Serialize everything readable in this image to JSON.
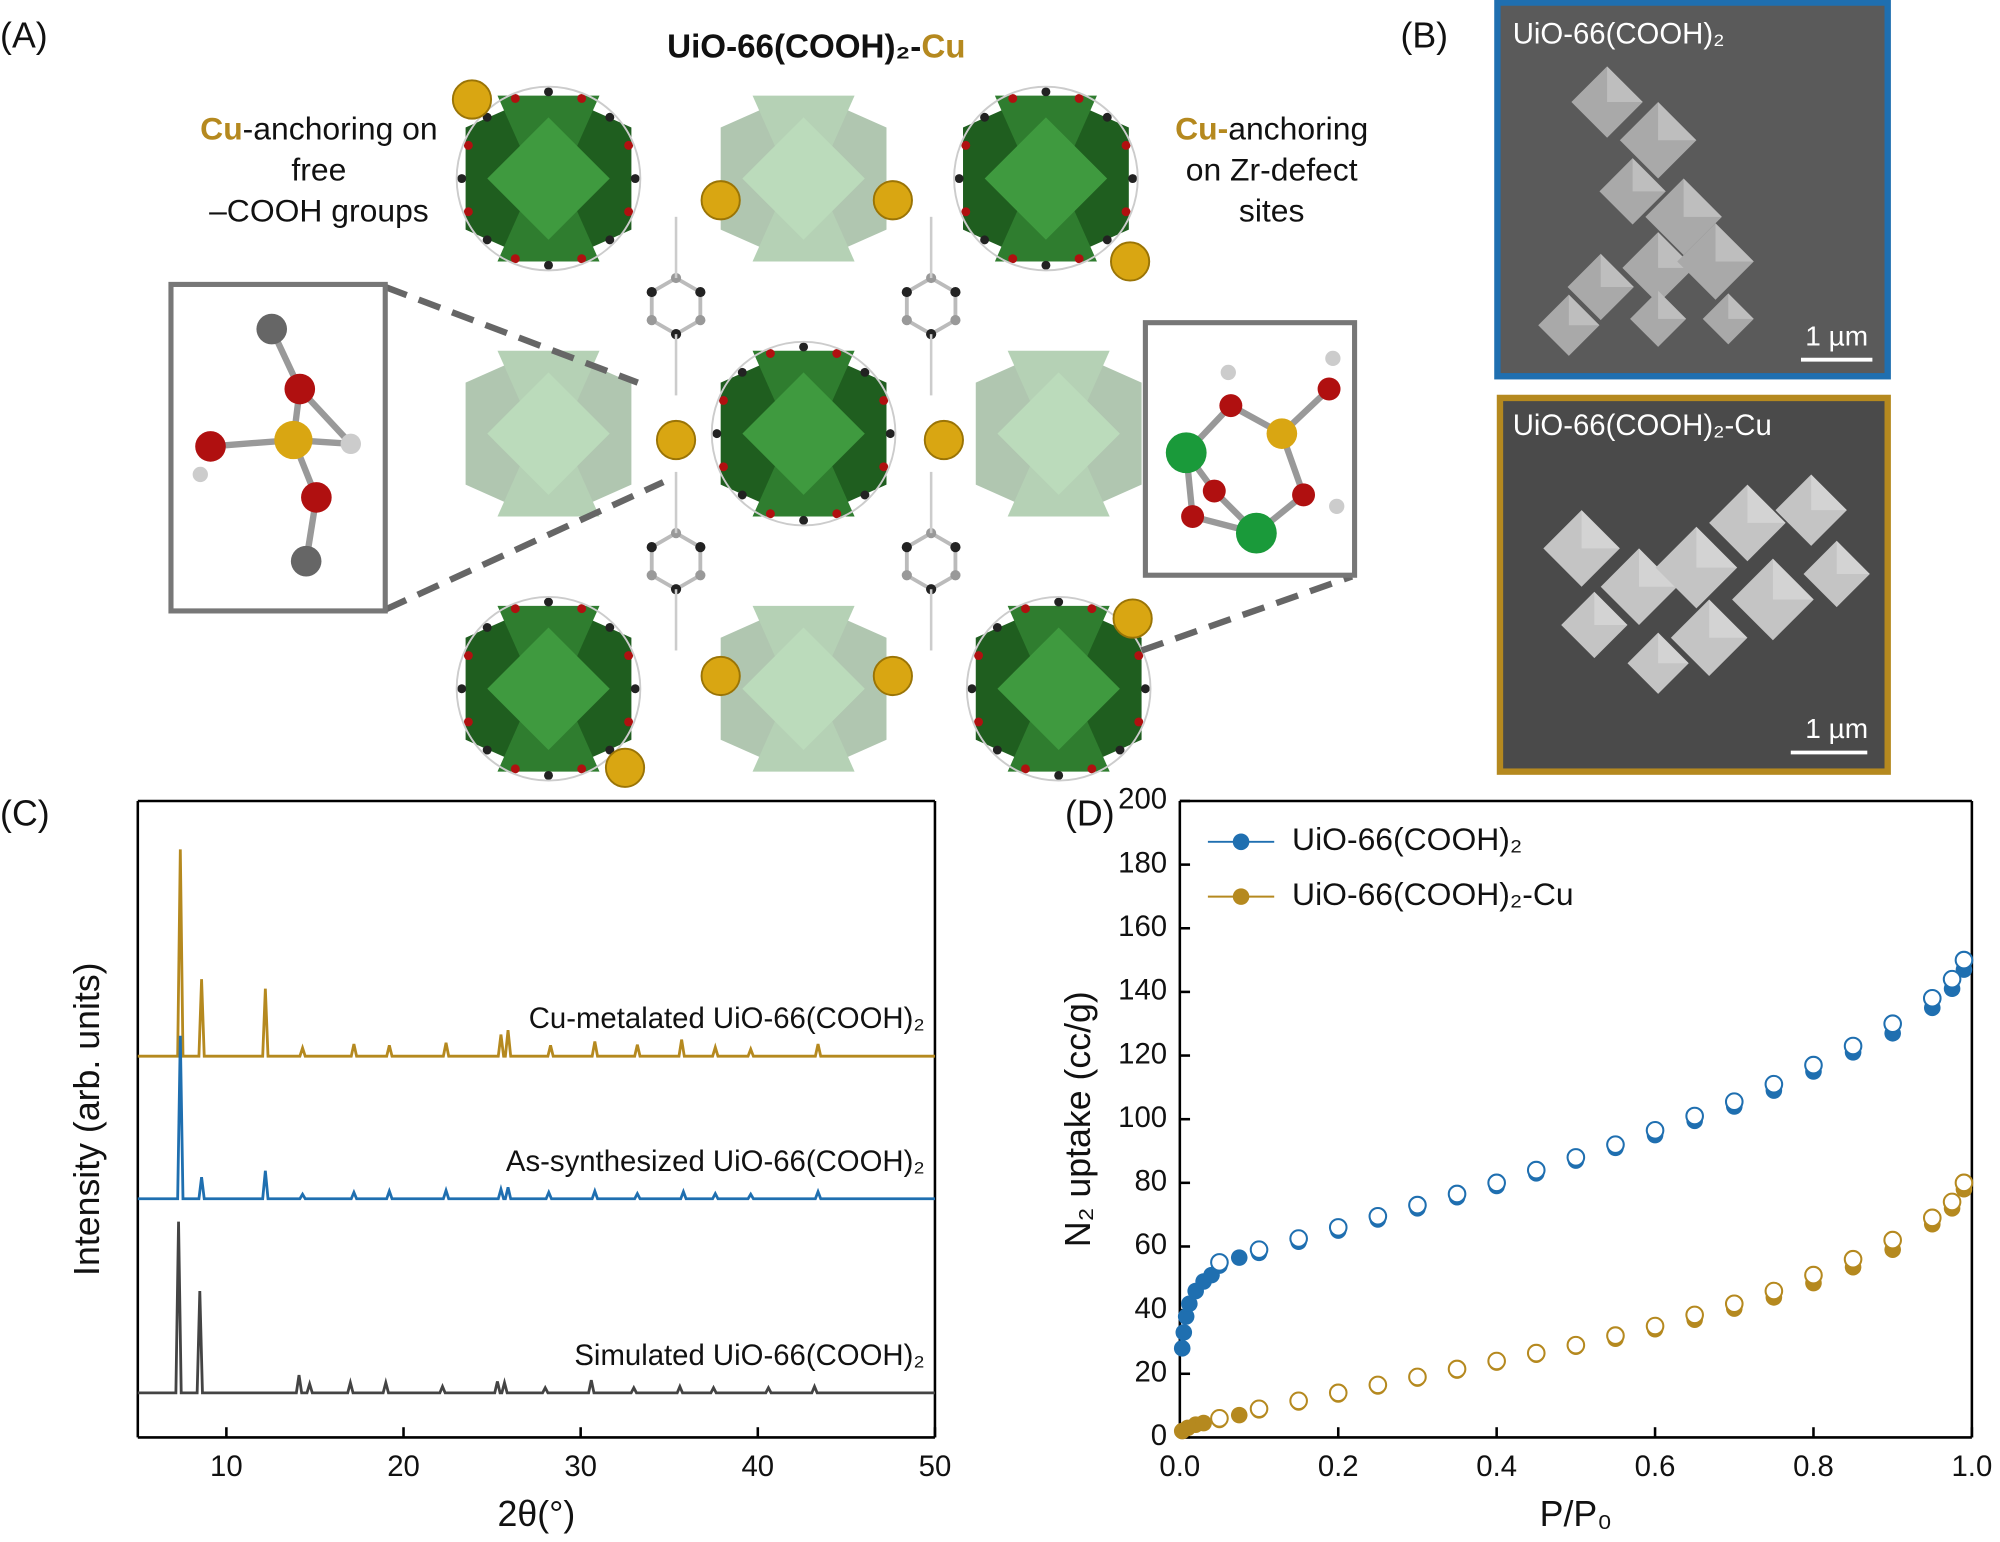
{
  "panel_labels": [
    "(A)",
    "(B)",
    "(C)",
    "(D)"
  ],
  "structure": {
    "title": "UiO-66(COOH)₂-",
    "title_highlight": "Cu",
    "left_note": {
      "highlight": "Cu",
      "lines": [
        "-anchoring on",
        "free",
        "–COOH groups"
      ]
    },
    "right_note": {
      "highlight": "Cu-",
      "lines": [
        "anchoring",
        "on Zr-defect",
        "sites"
      ]
    }
  },
  "micrographs": [
    {
      "label": "UiO-66(COOH)₂",
      "scale_bar": "1 µm"
    },
    {
      "label": "UiO-66(COOH)₂-Cu",
      "scale_bar": "1 µm"
    }
  ],
  "chart_data": [
    {
      "type": "line",
      "x_label": "2θ(°)",
      "y_label": "Intensity (arb. units)",
      "xlim": [
        5,
        50
      ],
      "xticks": [
        10,
        20,
        30,
        40,
        50
      ],
      "ylim": [
        0,
        100
      ],
      "series": [
        {
          "name": "Cu-metalated UiO-66(COOH)₂",
          "color": "#b5891f",
          "x": [
            5,
            7.25,
            7.4,
            7.55,
            8.45,
            8.6,
            8.75,
            12.05,
            12.2,
            12.35,
            14.15,
            14.3,
            14.45,
            17.05,
            17.2,
            17.35,
            19.05,
            19.2,
            19.35,
            22.25,
            22.4,
            22.55,
            25.35,
            25.5,
            25.65,
            25.75,
            25.9,
            26.05,
            28.15,
            28.3,
            28.45,
            30.65,
            30.8,
            30.95,
            33.05,
            33.2,
            33.35,
            35.55,
            35.7,
            35.85,
            37.45,
            37.6,
            37.75,
            39.45,
            39.6,
            39.75,
            43.25,
            43.4,
            43.55,
            50
          ],
          "values": [
            59.9,
            59.9,
            92.4,
            59.9,
            59.9,
            72,
            59.9,
            59.9,
            70.5,
            59.9,
            59.9,
            61.2,
            59.9,
            59.9,
            61.8,
            59.9,
            59.9,
            61.6,
            59.9,
            59.9,
            62,
            59.9,
            59.9,
            63.3,
            59.9,
            59.9,
            64,
            59.9,
            59.9,
            61.6,
            59.9,
            59.9,
            62.2,
            59.9,
            59.9,
            61.7,
            59.9,
            59.9,
            62.5,
            59.9,
            59.9,
            61.3,
            59.9,
            59.9,
            61,
            59.9,
            59.9,
            61.8,
            59.9,
            59.9
          ]
        },
        {
          "name": "As-synthesized UiO-66(COOH)₂",
          "color": "#1f6fb0",
          "x": [
            5,
            7.25,
            7.4,
            7.55,
            8.45,
            8.6,
            8.75,
            12.05,
            12.2,
            12.35,
            14.15,
            14.3,
            14.45,
            17.05,
            17.2,
            17.35,
            19.05,
            19.2,
            19.35,
            22.25,
            22.4,
            22.55,
            25.35,
            25.5,
            25.65,
            25.75,
            25.9,
            26.05,
            28.05,
            28.2,
            28.35,
            30.65,
            30.8,
            30.95,
            33.05,
            33.2,
            33.35,
            35.65,
            35.8,
            35.95,
            37.45,
            37.6,
            37.75,
            39.45,
            39.6,
            39.75,
            43.25,
            43.4,
            43.55,
            50
          ],
          "values": [
            37.5,
            37.5,
            63.1,
            37.5,
            37.5,
            40.9,
            37.5,
            37.5,
            41.9,
            37.5,
            37.5,
            38.2,
            37.5,
            37.5,
            38.5,
            37.5,
            37.5,
            38.7,
            37.5,
            37.5,
            38.8,
            37.5,
            37.5,
            39,
            37.5,
            37.5,
            39.3,
            37.5,
            37.5,
            38.5,
            37.5,
            37.5,
            38.7,
            37.5,
            37.5,
            38.3,
            37.5,
            37.5,
            38.6,
            37.5,
            37.5,
            38.3,
            37.5,
            37.5,
            38.2,
            37.5,
            37.5,
            38.6,
            37.5,
            37.5
          ]
        },
        {
          "name": "Simulated UiO-66(COOH)₂",
          "color": "#444444",
          "x": [
            5,
            7.15,
            7.3,
            7.45,
            8.35,
            8.5,
            8.65,
            13.95,
            14.1,
            14.25,
            14.55,
            14.7,
            14.85,
            16.85,
            17,
            17.15,
            18.85,
            19,
            19.15,
            22.05,
            22.2,
            22.35,
            25.15,
            25.3,
            25.45,
            25.55,
            25.7,
            25.85,
            27.85,
            28,
            28.15,
            30.45,
            30.6,
            30.75,
            32.85,
            33,
            33.15,
            35.45,
            35.6,
            35.75,
            37.35,
            37.5,
            37.65,
            40.45,
            40.6,
            40.75,
            43.05,
            43.2,
            43.35,
            50
          ],
          "values": [
            7,
            7,
            33.9,
            7,
            7,
            23,
            7,
            7,
            9.8,
            7,
            7,
            8.4,
            7,
            7,
            8.6,
            7,
            7,
            8.6,
            7,
            7,
            8,
            7,
            7,
            8.8,
            7,
            7,
            8.6,
            7,
            7,
            7.8,
            7,
            7,
            9,
            7,
            7,
            7.8,
            7,
            7,
            8,
            7,
            7,
            7.8,
            7,
            7,
            7.8,
            7,
            7,
            8,
            7,
            7
          ]
        }
      ]
    },
    {
      "type": "scatter",
      "x_label": "P/P₀",
      "y_label": "N₂ uptake (cc/g)",
      "xlim": [
        0,
        1
      ],
      "xticks": [
        {
          "value": 0,
          "label": "0.0"
        },
        0.2,
        0.4,
        0.6,
        0.8,
        {
          "value": 1,
          "label": "1.0"
        }
      ],
      "ylim": [
        0,
        200
      ],
      "yticks": [
        0,
        20,
        40,
        60,
        80,
        100,
        120,
        140,
        160,
        180,
        200
      ],
      "legend": "upper left",
      "series": [
        {
          "name": "UiO-66(COOH)₂",
          "color": "#1f6fb0",
          "x": [
            0.003,
            0.005,
            0.008,
            0.012,
            0.02,
            0.03,
            0.04,
            0.05,
            0.075,
            0.1,
            0.15,
            0.2,
            0.25,
            0.3,
            0.35,
            0.4,
            0.45,
            0.5,
            0.55,
            0.6,
            0.65,
            0.7,
            0.75,
            0.8,
            0.85,
            0.9,
            0.95,
            0.975,
            0.99
          ],
          "values": [
            28,
            33,
            38,
            42,
            46,
            49,
            51,
            54,
            56.5,
            58,
            61.5,
            65,
            68.5,
            72,
            75.5,
            79,
            83,
            87,
            91,
            95,
            99.5,
            104,
            109,
            115,
            121,
            127,
            135,
            141,
            147
          ],
          "desorption": {
            "x": [
              0.05,
              0.1,
              0.15,
              0.2,
              0.25,
              0.3,
              0.35,
              0.4,
              0.45,
              0.5,
              0.55,
              0.6,
              0.65,
              0.7,
              0.75,
              0.8,
              0.85,
              0.9,
              0.95,
              0.975,
              0.99
            ],
            "values": [
              55,
              59,
              62.5,
              66,
              69.5,
              73,
              76.5,
              80,
              84,
              88,
              92,
              96.5,
              101,
              105.5,
              111,
              117,
              123,
              130,
              138,
              144,
              150
            ]
          }
        },
        {
          "name": "UiO-66(COOH)₂-Cu",
          "color": "#b5891f",
          "x": [
            0.003,
            0.01,
            0.02,
            0.03,
            0.05,
            0.075,
            0.1,
            0.15,
            0.2,
            0.25,
            0.3,
            0.35,
            0.4,
            0.45,
            0.5,
            0.55,
            0.6,
            0.65,
            0.7,
            0.75,
            0.8,
            0.85,
            0.9,
            0.95,
            0.975,
            0.99
          ],
          "values": [
            2,
            3,
            4,
            4.5,
            5.5,
            7,
            8.5,
            11,
            13.5,
            16,
            18.5,
            21,
            23.5,
            26,
            28.5,
            31,
            34,
            37,
            40.5,
            44,
            48.5,
            53.5,
            59,
            67,
            72,
            78
          ],
          "desorption": {
            "x": [
              0.05,
              0.1,
              0.15,
              0.2,
              0.25,
              0.3,
              0.35,
              0.4,
              0.45,
              0.5,
              0.55,
              0.6,
              0.65,
              0.7,
              0.75,
              0.8,
              0.85,
              0.9,
              0.95,
              0.975,
              0.99
            ],
            "values": [
              6,
              9,
              11.5,
              14,
              16.5,
              19,
              21.5,
              24,
              26.5,
              29,
              32,
              35,
              38.5,
              42,
              46,
              51,
              56,
              62,
              69,
              74,
              80
            ]
          }
        }
      ]
    }
  ]
}
